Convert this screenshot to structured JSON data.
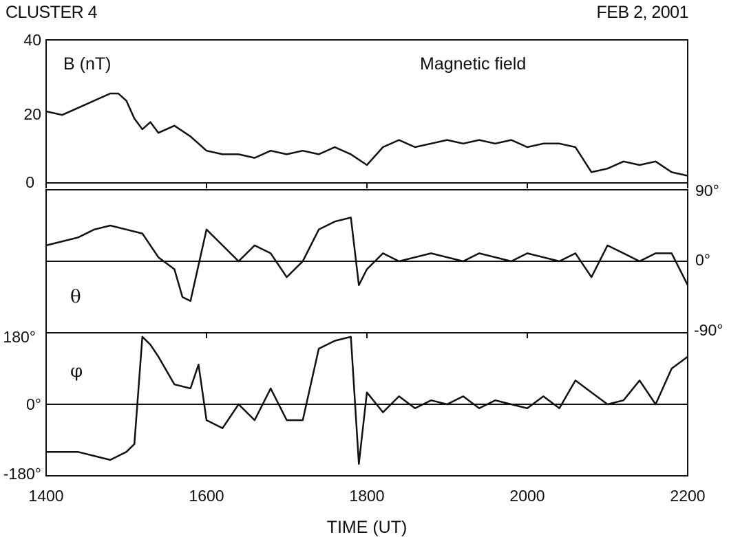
{
  "header": {
    "left": "CLUSTER 4",
    "right": "FEB 2, 2001"
  },
  "chart_data": {
    "type": "line",
    "xlabel": "TIME (UT)",
    "x_ticks": [
      1400,
      1600,
      1800,
      2000,
      2200
    ],
    "xlim": [
      1400,
      2200
    ],
    "panels": [
      {
        "id": "B",
        "label": "B (nT)",
        "title": "Magnetic field",
        "ylim": [
          0,
          40
        ],
        "y_ticks": [
          "40",
          "20",
          "0"
        ],
        "zero_line": 0,
        "series": [
          {
            "x": [
              1400,
              1420,
              1440,
              1460,
              1480,
              1490,
              1500,
              1510,
              1520,
              1530,
              1540,
              1560,
              1580,
              1600,
              1620,
              1640,
              1660,
              1680,
              1700,
              1720,
              1740,
              1760,
              1780,
              1800,
              1820,
              1840,
              1860,
              1880,
              1900,
              1920,
              1940,
              1960,
              1980,
              2000,
              2020,
              2040,
              2060,
              2080,
              2100,
              2120,
              2140,
              2160,
              2180,
              2200
            ],
            "y": [
              20,
              19,
              21,
              23,
              25,
              25,
              23,
              18,
              15,
              17,
              14,
              16,
              13,
              9,
              8,
              8,
              7,
              9,
              8,
              9,
              8,
              10,
              8,
              5,
              10,
              12,
              10,
              11,
              12,
              11,
              12,
              11,
              12,
              10,
              11,
              11,
              10,
              3,
              4,
              6,
              5,
              6,
              3,
              2
            ]
          }
        ]
      },
      {
        "id": "theta",
        "label": "θ",
        "ylim": [
          -90,
          90
        ],
        "y_ticks": [
          "90°",
          "0°",
          "-90°"
        ],
        "zero_line": 0,
        "series": [
          {
            "x": [
              1400,
              1420,
              1440,
              1460,
              1480,
              1500,
              1520,
              1540,
              1560,
              1570,
              1580,
              1600,
              1620,
              1640,
              1660,
              1680,
              1700,
              1720,
              1740,
              1760,
              1780,
              1790,
              1800,
              1820,
              1840,
              1860,
              1880,
              1900,
              1920,
              1940,
              1960,
              1980,
              2000,
              2020,
              2040,
              2060,
              2080,
              2100,
              2120,
              2140,
              2160,
              2180,
              2200
            ],
            "y": [
              20,
              25,
              30,
              40,
              45,
              40,
              35,
              5,
              -10,
              -45,
              -50,
              40,
              20,
              0,
              20,
              10,
              -20,
              0,
              40,
              50,
              55,
              -30,
              -10,
              10,
              0,
              5,
              10,
              5,
              0,
              10,
              5,
              0,
              10,
              5,
              0,
              10,
              -20,
              20,
              10,
              0,
              10,
              10,
              -30
            ]
          }
        ]
      },
      {
        "id": "phi",
        "label": "φ",
        "ylim": [
          -180,
          180
        ],
        "y_ticks": [
          "180°",
          "0°",
          "-180°"
        ],
        "zero_line": 0,
        "series": [
          {
            "x": [
              1400,
              1420,
              1440,
              1460,
              1480,
              1500,
              1510,
              1520,
              1530,
              1540,
              1560,
              1580,
              1590,
              1600,
              1620,
              1640,
              1660,
              1680,
              1700,
              1720,
              1740,
              1760,
              1780,
              1790,
              1800,
              1820,
              1840,
              1860,
              1880,
              1900,
              1920,
              1940,
              1960,
              1980,
              2000,
              2020,
              2040,
              2060,
              2080,
              2100,
              2120,
              2140,
              2160,
              2180,
              2200
            ],
            "y": [
              -120,
              -120,
              -120,
              -130,
              -140,
              -120,
              -100,
              170,
              150,
              120,
              50,
              40,
              100,
              -40,
              -60,
              0,
              -40,
              40,
              -40,
              -40,
              140,
              160,
              170,
              -150,
              30,
              -20,
              20,
              -10,
              10,
              0,
              20,
              -10,
              10,
              0,
              -10,
              20,
              -10,
              60,
              30,
              0,
              10,
              60,
              0,
              90,
              120
            ]
          }
        ]
      }
    ]
  }
}
